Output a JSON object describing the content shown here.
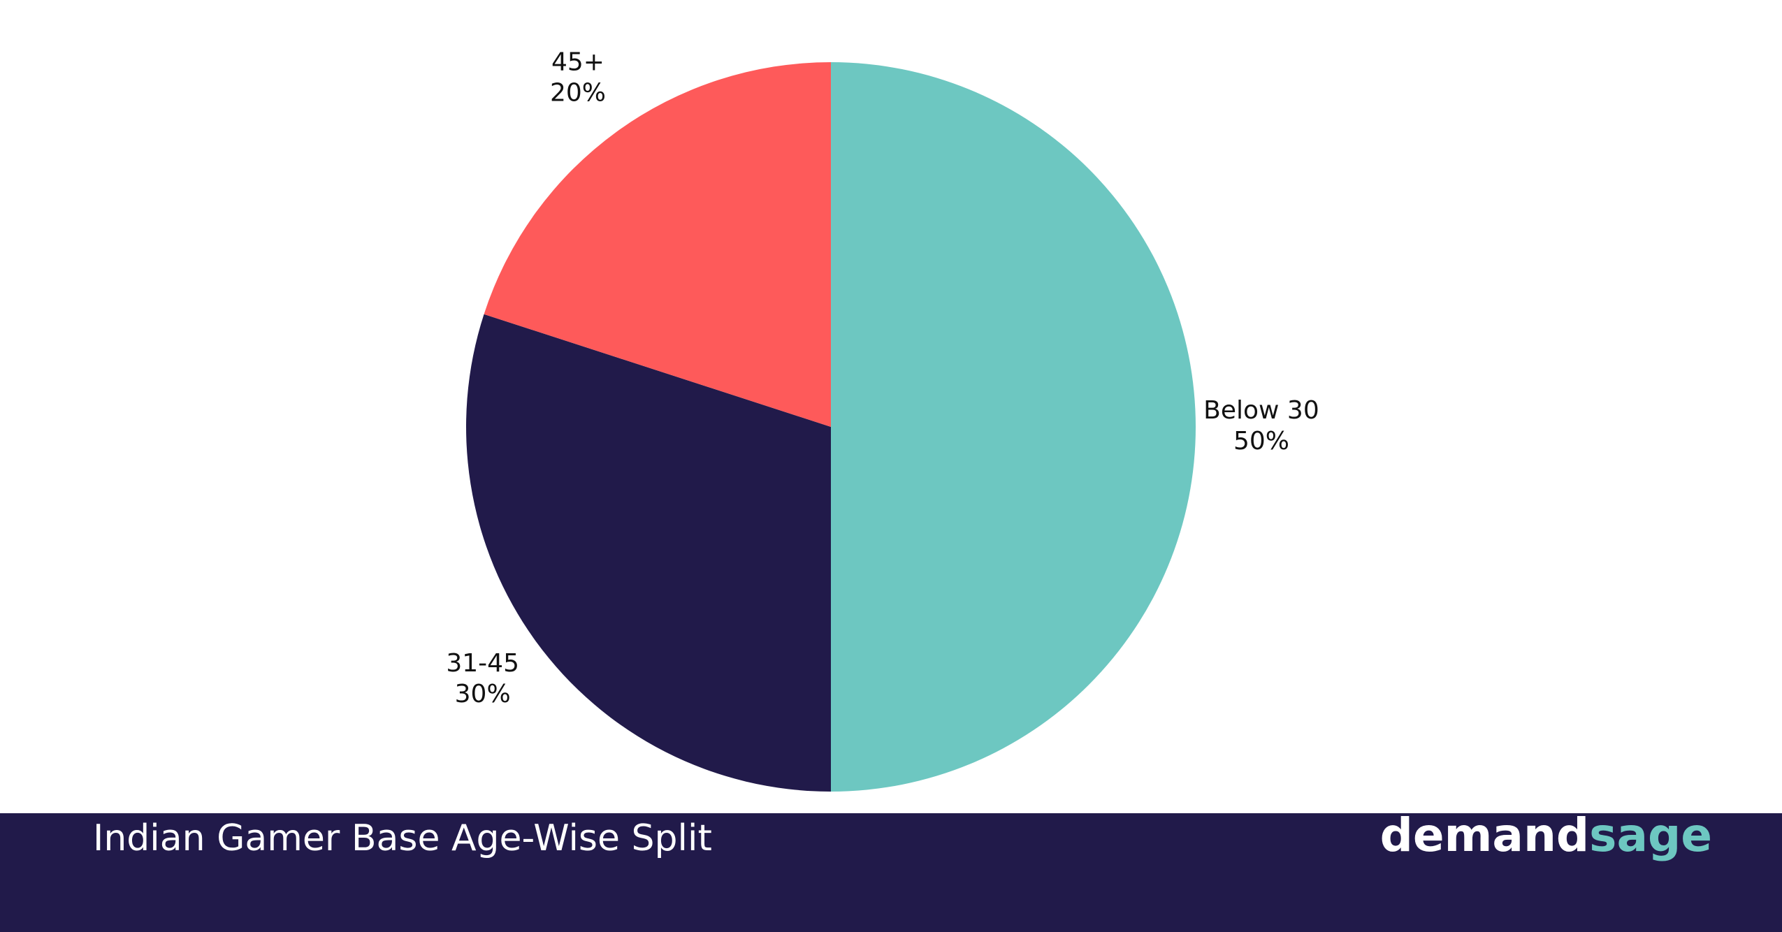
{
  "chart_data": {
    "type": "pie",
    "title": "Indian Gamer Base Age-Wise Split",
    "categories": [
      "Below 30",
      "31-45",
      "45+"
    ],
    "values": [
      50,
      30,
      20
    ],
    "value_labels": [
      "50%",
      "30%",
      "20%"
    ],
    "colors": [
      "#6dc7c1",
      "#211a4a",
      "#fe5a5a"
    ],
    "brand": [
      "demand",
      "sage"
    ]
  }
}
